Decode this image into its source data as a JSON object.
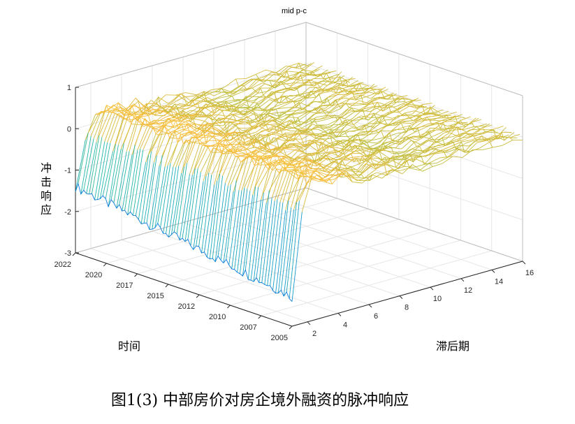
{
  "chart_data": {
    "type": "surface-3d-mesh",
    "title": "mid p-c",
    "xlabel": "时间",
    "ylabel": "滞后期",
    "zlabel": "冲击响应",
    "caption": "图1(3)  中部房价对房企境外融资的脉冲响应",
    "time_ticks": [
      "2022",
      "2020",
      "2017",
      "2015",
      "2012",
      "2010",
      "2007",
      "2005"
    ],
    "lag_ticks": [
      2,
      4,
      6,
      8,
      10,
      12,
      14,
      16
    ],
    "response_ticks": [
      1,
      0,
      -1,
      -2,
      -3
    ],
    "zlim": [
      -3,
      1
    ],
    "colormap": "parula",
    "approx_response_by_lag": [
      {
        "lag": 1,
        "response": -1.4
      },
      {
        "lag": 2,
        "response": 0.4
      },
      {
        "lag": 3,
        "response": 0.3
      },
      {
        "lag": 4,
        "response": 0.25
      },
      {
        "lag": 6,
        "response": 0.1
      },
      {
        "lag": 8,
        "response": 0.05
      },
      {
        "lag": 10,
        "response": -0.05
      },
      {
        "lag": 12,
        "response": 0.0
      },
      {
        "lag": 14,
        "response": 0.05
      },
      {
        "lag": 16,
        "response": 0.0
      }
    ],
    "grid": true
  }
}
